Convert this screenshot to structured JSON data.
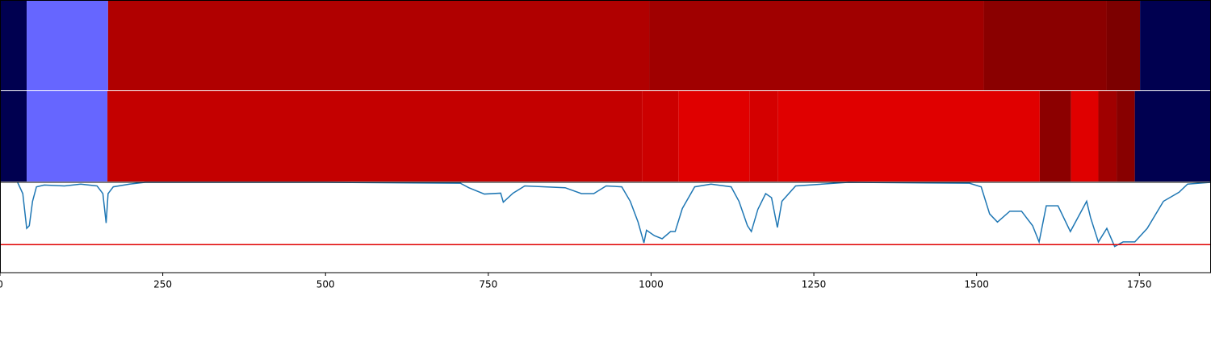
{
  "chart_data": [
    {
      "type": "segments",
      "xlim": [
        0,
        1860
      ],
      "segments": [
        {
          "start": 0,
          "end": 41,
          "color": "#000050"
        },
        {
          "start": 41,
          "end": 166,
          "color": "#6666ff"
        },
        {
          "start": 166,
          "end": 997,
          "color": "#b00000"
        },
        {
          "start": 997,
          "end": 1511,
          "color": "#a00000"
        },
        {
          "start": 1511,
          "end": 1700,
          "color": "#8a0000"
        },
        {
          "start": 1700,
          "end": 1751,
          "color": "#7c0000"
        },
        {
          "start": 1751,
          "end": 1860,
          "color": "#000050"
        }
      ]
    },
    {
      "type": "segments",
      "xlim": [
        0,
        1860
      ],
      "segments": [
        {
          "start": 0,
          "end": 41,
          "color": "#000050"
        },
        {
          "start": 41,
          "end": 165,
          "color": "#6666ff"
        },
        {
          "start": 165,
          "end": 986,
          "color": "#c40000"
        },
        {
          "start": 986,
          "end": 1042,
          "color": "#cc0000"
        },
        {
          "start": 1042,
          "end": 1151,
          "color": "#e00000"
        },
        {
          "start": 1151,
          "end": 1195,
          "color": "#d40000"
        },
        {
          "start": 1195,
          "end": 1597,
          "color": "#e00000"
        },
        {
          "start": 1597,
          "end": 1645,
          "color": "#8c0000"
        },
        {
          "start": 1645,
          "end": 1687,
          "color": "#e00000"
        },
        {
          "start": 1687,
          "end": 1715,
          "color": "#a00000"
        },
        {
          "start": 1715,
          "end": 1743,
          "color": "#880000"
        },
        {
          "start": 1743,
          "end": 1860,
          "color": "#000050"
        }
      ]
    },
    {
      "type": "line",
      "xlim": [
        0,
        1860
      ],
      "ylim": [
        0,
        1
      ],
      "xticks": [
        0,
        250,
        500,
        750,
        1000,
        1250,
        1500,
        1750
      ],
      "threshold": 0.31,
      "threshold_color": "#e00000",
      "series": [
        {
          "color": "#1f77b4",
          "x": [
            27,
            35,
            41,
            45,
            50,
            56,
            68,
            99,
            124,
            149,
            158,
            163,
            166,
            174,
            199,
            223,
            496,
            707,
            720,
            744,
            769,
            773,
            788,
            806,
            868,
            893,
            912,
            931,
            955,
            968,
            980,
            989,
            993,
            1005,
            1017,
            1030,
            1037,
            1048,
            1067,
            1092,
            1123,
            1135,
            1148,
            1154,
            1164,
            1176,
            1185,
            1194,
            1201,
            1222,
            1303,
            1489,
            1507,
            1520,
            1532,
            1551,
            1569,
            1586,
            1596,
            1607,
            1625,
            1644,
            1669,
            1675,
            1687,
            1700,
            1712,
            1725,
            1743,
            1762,
            1787,
            1811,
            1824,
            1860
          ],
          "values": [
            1.0,
            0.875,
            0.49,
            0.52,
            0.79,
            0.95,
            0.97,
            0.96,
            0.98,
            0.96,
            0.875,
            0.55,
            0.875,
            0.95,
            0.98,
            1.0,
            1.0,
            0.99,
            0.94,
            0.87,
            0.88,
            0.78,
            0.88,
            0.96,
            0.94,
            0.875,
            0.875,
            0.96,
            0.95,
            0.79,
            0.56,
            0.33,
            0.47,
            0.41,
            0.375,
            0.455,
            0.455,
            0.71,
            0.95,
            0.98,
            0.95,
            0.79,
            0.52,
            0.455,
            0.7,
            0.875,
            0.83,
            0.5,
            0.79,
            0.96,
            1.0,
            0.99,
            0.95,
            0.65,
            0.56,
            0.68,
            0.68,
            0.52,
            0.34,
            0.74,
            0.74,
            0.455,
            0.79,
            0.61,
            0.34,
            0.49,
            0.29,
            0.34,
            0.34,
            0.49,
            0.79,
            0.89,
            0.98,
            1.0
          ]
        }
      ]
    }
  ]
}
